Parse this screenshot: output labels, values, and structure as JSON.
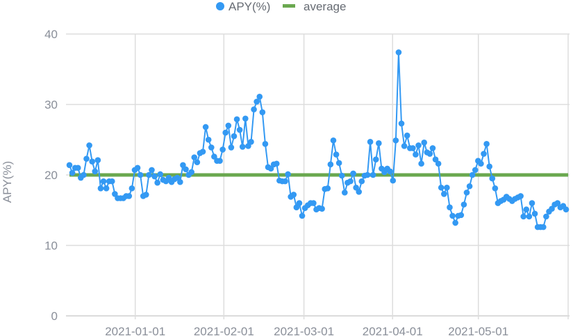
{
  "chart_data": {
    "type": "line",
    "title": "",
    "xlabel": "",
    "ylabel": "APY(%)",
    "ylim": [
      0,
      40
    ],
    "yticks": [
      "0",
      "10",
      "20",
      "30",
      "40"
    ],
    "xticks": [
      "2021-01-01",
      "2021-02-01",
      "2021-03-01",
      "2021-04-01",
      "2021-05-01"
    ],
    "x_start": "2020-12-09",
    "x_step": "1 day",
    "grid": true,
    "legend_position": "top-center",
    "colors": {
      "apy": "#3399f3",
      "average": "#6aa84f",
      "grid": "#dddddd"
    },
    "series": [
      {
        "name": "APY(%)",
        "style": "line-with-markers",
        "values": [
          21.4,
          20.3,
          21.0,
          21.0,
          19.6,
          20.0,
          22.3,
          24.2,
          21.9,
          20.5,
          22.1,
          18.1,
          19.1,
          18.1,
          19.1,
          19.1,
          17.3,
          16.7,
          16.7,
          16.7,
          17.0,
          17.0,
          18.1,
          20.7,
          21.0,
          20.0,
          17.0,
          17.2,
          20.0,
          20.7,
          19.8,
          18.9,
          20.1,
          19.3,
          19.1,
          19.6,
          19.0,
          19.4,
          19.6,
          19.0,
          21.4,
          20.8,
          20.0,
          20.4,
          22.5,
          21.8,
          23.1,
          23.3,
          26.8,
          25.0,
          23.9,
          22.6,
          22.0,
          22.0,
          23.6,
          26.0,
          27.0,
          23.9,
          25.5,
          27.9,
          26.4,
          24.0,
          28.0,
          24.1,
          24.7,
          29.3,
          30.4,
          31.1,
          28.9,
          24.4,
          21.1,
          20.9,
          21.5,
          21.6,
          19.2,
          19.1,
          19.1,
          20.1,
          16.9,
          17.2,
          15.4,
          16.0,
          14.2,
          15.3,
          15.7,
          16.0,
          16.0,
          15.1,
          15.3,
          15.2,
          18.0,
          18.1,
          21.5,
          24.9,
          22.9,
          21.7,
          19.9,
          17.5,
          18.9,
          19.1,
          20.2,
          18.2,
          17.6,
          19.1,
          19.9,
          20.0,
          24.7,
          20.0,
          22.2,
          24.5,
          20.9,
          20.4,
          20.9,
          20.5,
          19.2,
          24.9,
          37.4,
          27.3,
          24.1,
          25.6,
          23.8,
          23.8,
          22.9,
          24.2,
          21.6,
          24.6,
          23.2,
          23.0,
          23.8,
          22.2,
          21.6,
          18.2,
          17.3,
          18.2,
          15.4,
          14.2,
          13.2,
          14.2,
          14.3,
          15.8,
          17.5,
          18.4,
          20.0,
          20.7,
          22.0,
          21.6,
          23.0,
          24.4,
          21.2,
          19.5,
          18.1,
          16.0,
          16.3,
          16.5,
          16.9,
          16.6,
          16.3,
          16.6,
          16.8,
          17.0,
          14.1,
          15.1,
          14.1,
          16.0,
          14.5,
          12.6,
          12.6,
          12.6,
          14.1,
          14.8,
          15.2,
          15.8,
          16.0,
          15.4,
          15.6,
          15.1
        ]
      },
      {
        "name": "average",
        "style": "line",
        "value": 20.0
      }
    ]
  }
}
